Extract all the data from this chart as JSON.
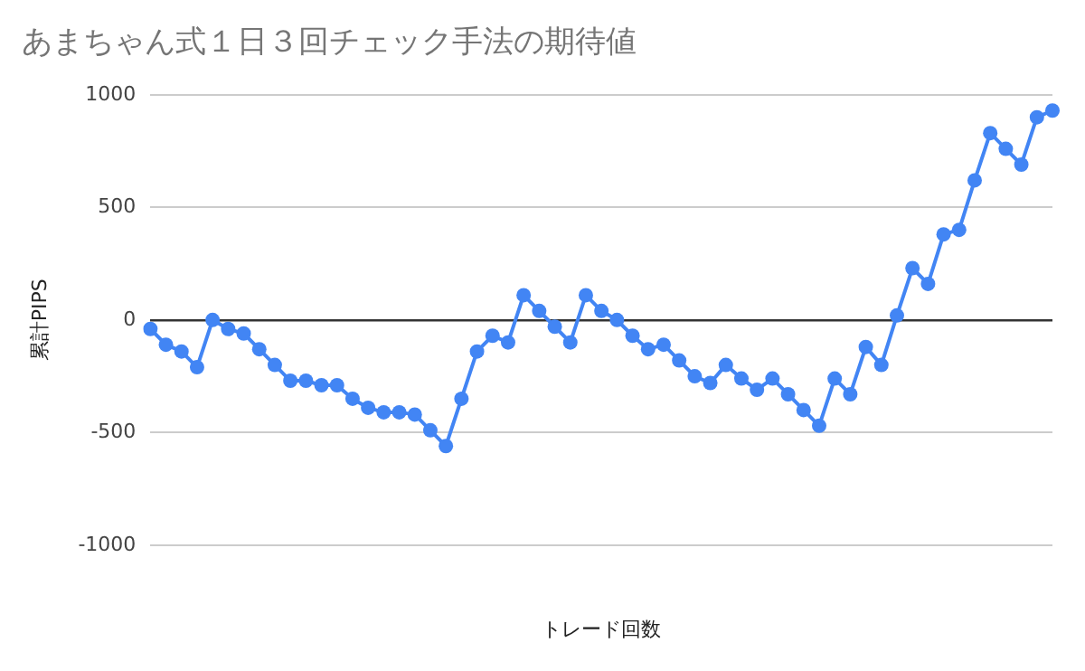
{
  "chart_data": {
    "type": "line",
    "title": "あまちゃん式１日３回チェック手法の期待値",
    "xlabel": "トレード回数",
    "ylabel": "累計PIPS",
    "categories": [
      null,
      null,
      null,
      null,
      null,
      null,
      null,
      null,
      null,
      null,
      null,
      null,
      null,
      null,
      null,
      null,
      null,
      null,
      null,
      null,
      null,
      null,
      null,
      null,
      null,
      null,
      null,
      null,
      null,
      null,
      null,
      null,
      null,
      null,
      null,
      null,
      null,
      null,
      null,
      null,
      null,
      null,
      null,
      null,
      null,
      null,
      null,
      null,
      null,
      null,
      null,
      null,
      null,
      null,
      null,
      null,
      null,
      null,
      null
    ],
    "series": [
      {
        "color": "#4285f4",
        "values": [
          -40,
          -110,
          -140,
          -210,
          0,
          -40,
          -60,
          -130,
          -200,
          -270,
          -270,
          -290,
          -290,
          -350,
          -390,
          -410,
          -410,
          -420,
          -490,
          -560,
          -350,
          -140,
          -70,
          -100,
          110,
          40,
          -30,
          -100,
          110,
          40,
          0,
          -70,
          -130,
          -110,
          -180,
          -250,
          -280,
          -200,
          -260,
          -310,
          -260,
          -330,
          -400,
          -470,
          -260,
          -330,
          -120,
          -200,
          20,
          230,
          160,
          380,
          400,
          620,
          830,
          760,
          690,
          900,
          930
        ]
      }
    ],
    "ylim": [
      -1000,
      1000
    ],
    "yticks": [
      -1000,
      -500,
      0,
      500,
      1000
    ],
    "grid": "y",
    "legend": false,
    "marker": "circle",
    "line_style": "solid"
  }
}
